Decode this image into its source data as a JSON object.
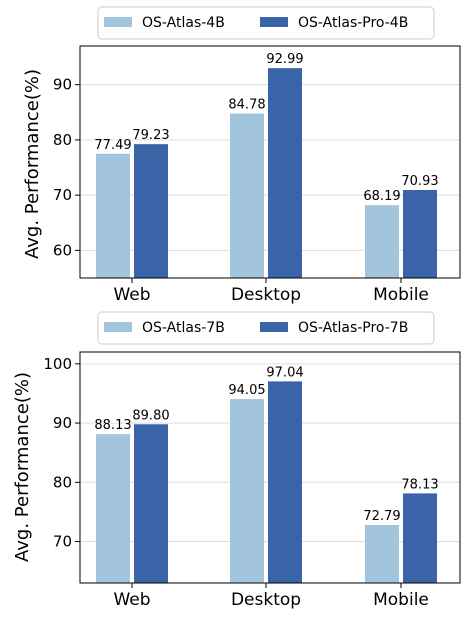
{
  "chart_data": [
    {
      "type": "bar",
      "title": "",
      "xlabel": "",
      "ylabel": "Avg. Performance(%)",
      "categories": [
        "Web",
        "Desktop",
        "Mobile"
      ],
      "ylim": [
        55,
        97
      ],
      "yticks": [
        60,
        70,
        80,
        90
      ],
      "grid": true,
      "legend_position": "top",
      "series": [
        {
          "name": "OS-Atlas-4B",
          "color": "#a3c4dd",
          "values": [
            77.49,
            84.78,
            68.19
          ],
          "labels": [
            "77.49",
            "84.78",
            "68.19"
          ]
        },
        {
          "name": "OS-Atlas-Pro-4B",
          "color": "#3a64a8",
          "values": [
            79.23,
            92.99,
            70.93
          ],
          "labels": [
            "79.23",
            "92.99",
            "70.93"
          ]
        }
      ]
    },
    {
      "type": "bar",
      "title": "",
      "xlabel": "",
      "ylabel": "Avg. Performance(%)",
      "categories": [
        "Web",
        "Desktop",
        "Mobile"
      ],
      "ylim": [
        63,
        102
      ],
      "yticks": [
        70,
        80,
        90,
        100
      ],
      "grid": true,
      "legend_position": "top",
      "series": [
        {
          "name": "OS-Atlas-7B",
          "color": "#a3c4dd",
          "values": [
            88.13,
            94.05,
            72.79
          ],
          "labels": [
            "88.13",
            "94.05",
            "72.79"
          ]
        },
        {
          "name": "OS-Atlas-Pro-7B",
          "color": "#3a64a8",
          "values": [
            89.8,
            97.04,
            78.13
          ],
          "labels": [
            "89.80",
            "97.04",
            "78.13"
          ]
        }
      ]
    }
  ]
}
